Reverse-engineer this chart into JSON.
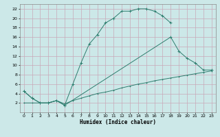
{
  "xlabel": "Humidex (Indice chaleur)",
  "bg_color": "#cce8e8",
  "grid_color": "#b0d8d8",
  "line_color": "#2d7d6e",
  "xlim": [
    -0.5,
    23.5
  ],
  "ylim": [
    0,
    23
  ],
  "xticks": [
    0,
    1,
    2,
    3,
    4,
    5,
    6,
    7,
    8,
    9,
    10,
    11,
    12,
    13,
    14,
    15,
    16,
    17,
    18,
    19,
    20,
    21,
    22,
    23
  ],
  "yticks": [
    2,
    4,
    6,
    8,
    10,
    12,
    14,
    16,
    18,
    20,
    22
  ],
  "line1_x": [
    0,
    1,
    2,
    3,
    4,
    5,
    6,
    7,
    8,
    9,
    10,
    11,
    12,
    13,
    14,
    15,
    16,
    17,
    18
  ],
  "line1_y": [
    4.5,
    3.0,
    2.0,
    2.0,
    2.5,
    1.5,
    6.0,
    10.5,
    14.5,
    16.5,
    19.0,
    20.0,
    21.5,
    21.5,
    22.0,
    22.0,
    21.5,
    20.5,
    19.0
  ],
  "line2_x": [
    0,
    1,
    2,
    3,
    4,
    5,
    18,
    19,
    20,
    21,
    22,
    23
  ],
  "line2_y": [
    4.5,
    3.0,
    2.0,
    2.0,
    2.5,
    1.5,
    16.0,
    13.0,
    11.5,
    10.5,
    9.0,
    9.0
  ],
  "line3_x": [
    0,
    1,
    2,
    3,
    4,
    5,
    6,
    7,
    8,
    9,
    10,
    11,
    12,
    13,
    14,
    15,
    16,
    17,
    18,
    19,
    20,
    21,
    22,
    23
  ],
  "line3_y": [
    2.0,
    2.0,
    2.0,
    2.0,
    2.5,
    1.8,
    2.5,
    3.0,
    3.5,
    4.0,
    4.3,
    4.7,
    5.2,
    5.6,
    6.0,
    6.3,
    6.7,
    7.0,
    7.3,
    7.6,
    7.9,
    8.2,
    8.5,
    8.8
  ]
}
